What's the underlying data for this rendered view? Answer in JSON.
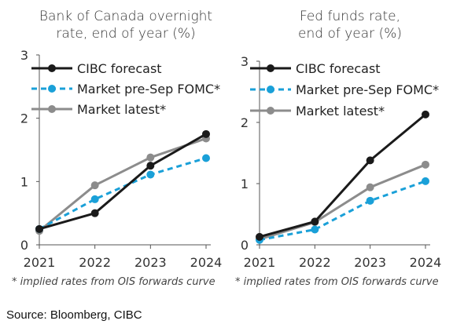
{
  "chart_data": [
    {
      "type": "line",
      "title": "Bank of Canada overnight rate, end of year (%)",
      "title_lines": [
        "Bank of Canada overnight",
        "rate, end of year (%)"
      ],
      "categories": [
        "2021",
        "2022",
        "2023",
        "2024"
      ],
      "ylim": [
        0,
        3
      ],
      "yticks": [
        "0",
        "1",
        "2",
        "3"
      ],
      "series": [
        {
          "name": "CIBC forecast",
          "values": [
            0.25,
            0.5,
            1.25,
            1.75
          ]
        },
        {
          "name": "Market pre-Sep FOMC*",
          "values": [
            0.25,
            0.72,
            1.11,
            1.37
          ]
        },
        {
          "name": "Market latest*",
          "values": [
            0.22,
            0.94,
            1.38,
            1.68
          ]
        }
      ],
      "footnote": "* implied rates from OIS forwards curve",
      "legend": "top-left",
      "grid": false
    },
    {
      "type": "line",
      "title": "Fed funds rate, end of year (%)",
      "title_lines": [
        "Fed funds rate,",
        "end of year (%)"
      ],
      "categories": [
        "2021",
        "2022",
        "2023",
        "2024"
      ],
      "ylim": [
        0,
        3
      ],
      "yticks": [
        "0",
        "1",
        "2",
        "3"
      ],
      "series": [
        {
          "name": "CIBC forecast",
          "values": [
            0.13,
            0.38,
            1.38,
            2.13
          ]
        },
        {
          "name": "Market pre-Sep FOMC*",
          "values": [
            0.08,
            0.25,
            0.72,
            1.04
          ]
        },
        {
          "name": "Market latest*",
          "values": [
            0.09,
            0.37,
            0.94,
            1.31
          ]
        }
      ],
      "footnote": "* implied rates from OIS forwards curve",
      "legend": "top-left",
      "grid": false
    }
  ],
  "series_styles": [
    {
      "color": "#1a1a1a",
      "dash": ""
    },
    {
      "color": "#1aa0d8",
      "dash": "7,5"
    },
    {
      "color": "#8c8c8c",
      "dash": ""
    }
  ],
  "source": "Source: Bloomberg, CIBC"
}
